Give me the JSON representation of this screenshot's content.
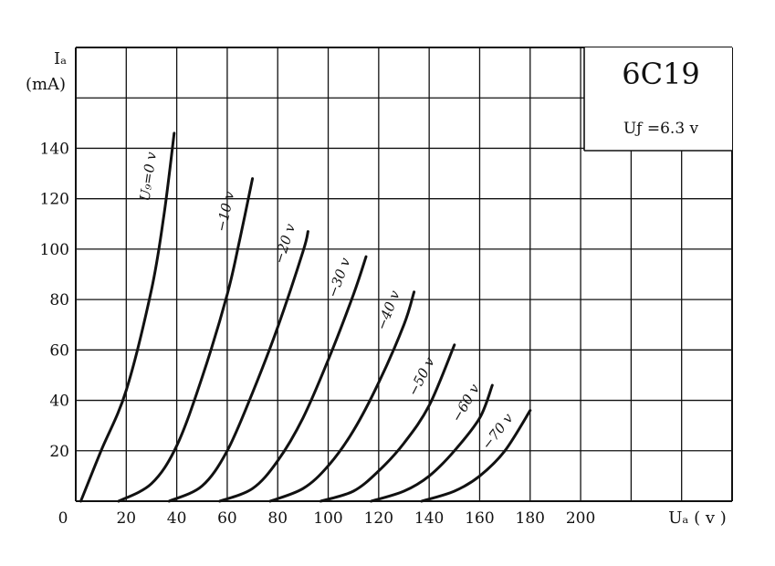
{
  "chart_data": {
    "type": "line",
    "tube": "6C19",
    "note": "Uƒ =6.3 v",
    "ylabel": "Iₐ",
    "ylabel_unit": "(mA)",
    "xlabel": "Uₐ ( v )",
    "x_ticks": [
      0,
      20,
      40,
      60,
      80,
      100,
      120,
      140,
      160,
      180,
      200
    ],
    "y_ticks": [
      20,
      40,
      60,
      80,
      100,
      120,
      140
    ],
    "xlim": [
      0,
      260
    ],
    "ylim": [
      0,
      180
    ],
    "grid": true,
    "series": [
      {
        "name": "U₉=0 v",
        "x": [
          2,
          10,
          20,
          30,
          35,
          39
        ],
        "y": [
          0,
          20,
          44,
          84,
          114,
          146
        ]
      },
      {
        "name": "−10 v",
        "x": [
          17,
          30,
          40,
          50,
          60,
          65,
          70
        ],
        "y": [
          0,
          7,
          22,
          49,
          82,
          104,
          128
        ]
      },
      {
        "name": "−20 v",
        "x": [
          37,
          50,
          60,
          70,
          80,
          90,
          92
        ],
        "y": [
          0,
          6,
          20,
          43,
          69,
          99,
          107
        ]
      },
      {
        "name": "−30 v",
        "x": [
          57,
          70,
          80,
          90,
          100,
          110,
          115
        ],
        "y": [
          0,
          5,
          16,
          33,
          56,
          82,
          97
        ]
      },
      {
        "name": "−40 v",
        "x": [
          77,
          90,
          100,
          110,
          120,
          130,
          134
        ],
        "y": [
          0,
          5,
          14,
          28,
          47,
          70,
          83
        ]
      },
      {
        "name": "−50 v",
        "x": [
          97,
          110,
          120,
          130,
          140,
          150
        ],
        "y": [
          0,
          4,
          12,
          23,
          38,
          62
        ]
      },
      {
        "name": "−60 v",
        "x": [
          117,
          130,
          140,
          150,
          160,
          165
        ],
        "y": [
          0,
          4,
          10,
          20,
          33,
          46
        ]
      },
      {
        "name": "−70 v",
        "x": [
          137,
          150,
          160,
          170,
          180
        ],
        "y": [
          0,
          4,
          10,
          20,
          36
        ]
      }
    ]
  }
}
